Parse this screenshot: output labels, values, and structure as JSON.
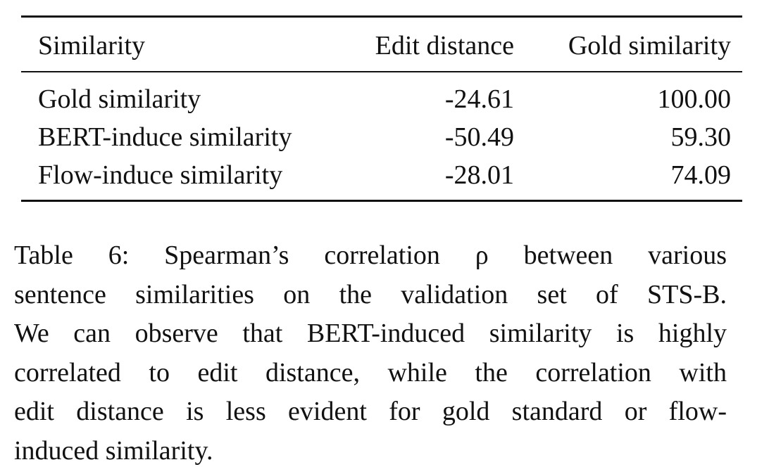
{
  "table": {
    "headers": [
      "Similarity",
      "Edit distance",
      "Gold similarity"
    ],
    "rows": [
      [
        "Gold similarity",
        "-24.61",
        "100.00"
      ],
      [
        "BERT-induce similarity",
        "-50.49",
        "59.30"
      ],
      [
        "Flow-induce similarity",
        "-28.01",
        "74.09"
      ]
    ]
  },
  "caption": {
    "lines": [
      "Table 6:   Spearman’s correlation ρ between various",
      "sentence similarities on the validation set of STS-B.",
      "We can observe that BERT-induced similarity is highly",
      "correlated to edit distance, while the correlation with",
      "edit distance is less evident for gold standard or flow-",
      "induced similarity."
    ]
  }
}
